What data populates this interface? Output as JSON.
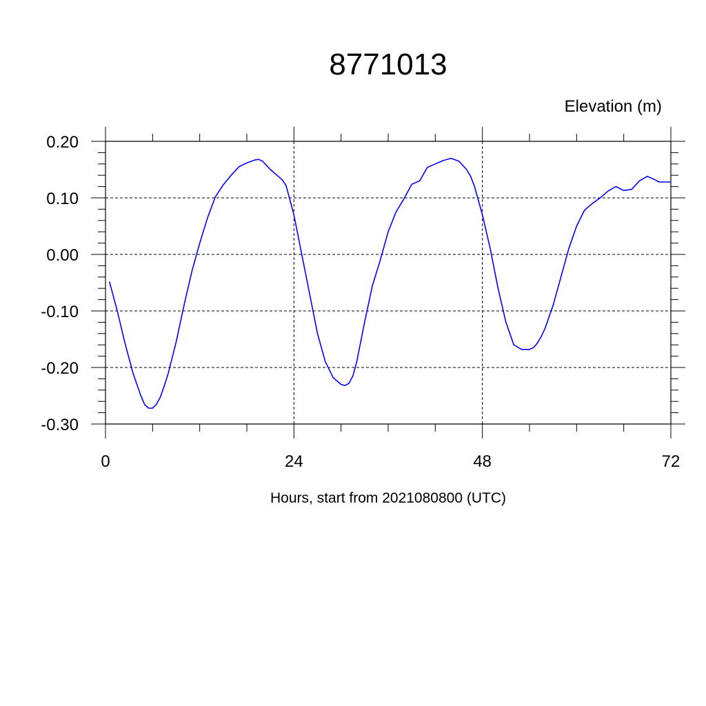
{
  "chart_data": {
    "type": "line",
    "title": "8771013",
    "ylabel": "Elevation (m)",
    "xlabel": "Hours, start from 2021080800 (UTC)",
    "xlim": [
      0,
      72
    ],
    "ylim": [
      -0.3,
      0.2
    ],
    "xticks": [
      0,
      24,
      48,
      72
    ],
    "xtick_labels": [
      "0",
      "24",
      "48",
      "72"
    ],
    "yticks": [
      0.2,
      0.1,
      0.0,
      -0.1,
      -0.2,
      -0.3
    ],
    "ytick_labels": [
      "0.20",
      "0.10",
      "0.00",
      "-0.10",
      "-0.20",
      "-0.30"
    ],
    "grid": true,
    "line_color": "#0000ff",
    "series": [
      {
        "x": [
          0.5,
          1.5,
          2.5,
          3.5,
          4.5,
          5.0,
          5.5,
          6.0,
          6.5,
          7.0,
          7.5,
          8.0,
          9.0,
          10.0,
          11.0,
          12.0,
          13.0,
          14.0,
          15.0,
          16.0,
          17.0,
          18.0,
          19.0,
          19.5,
          20.0,
          21.0,
          22.0,
          22.5,
          23.0,
          24.0,
          25.0,
          26.0,
          27.0,
          28.0,
          29.0,
          30.0,
          30.5,
          31.0,
          31.5,
          32.0,
          33.0,
          34.0,
          35.0,
          36.0,
          37.0,
          38.0,
          39.0,
          40.0,
          41.0,
          42.0,
          43.0,
          44.0,
          45.0,
          46.0,
          46.5,
          47.0,
          48.0,
          49.0,
          50.0,
          51.0,
          52.0,
          53.0,
          54.0,
          54.5,
          55.0,
          55.5,
          56.0,
          57.0,
          58.0,
          59.0,
          60.0,
          61.0,
          62.0,
          63.0,
          64.0,
          65.0,
          66.0,
          67.0,
          68.0,
          69.0,
          70.0,
          70.5,
          71.0,
          72.0
        ],
        "y": [
          -0.048,
          -0.1,
          -0.158,
          -0.21,
          -0.25,
          -0.266,
          -0.272,
          -0.272,
          -0.265,
          -0.252,
          -0.232,
          -0.21,
          -0.155,
          -0.09,
          -0.03,
          0.02,
          0.065,
          0.102,
          0.123,
          0.14,
          0.155,
          0.162,
          0.167,
          0.168,
          0.165,
          0.15,
          0.138,
          0.132,
          0.122,
          0.07,
          0.0,
          -0.07,
          -0.14,
          -0.19,
          -0.218,
          -0.23,
          -0.232,
          -0.228,
          -0.215,
          -0.19,
          -0.12,
          -0.055,
          -0.01,
          0.04,
          0.075,
          0.098,
          0.124,
          0.13,
          0.154,
          0.16,
          0.166,
          0.17,
          0.165,
          0.15,
          0.138,
          0.12,
          0.07,
          0.01,
          -0.06,
          -0.12,
          -0.16,
          -0.168,
          -0.168,
          -0.165,
          -0.157,
          -0.145,
          -0.13,
          -0.09,
          -0.04,
          0.01,
          0.05,
          0.078,
          0.09,
          0.1,
          0.112,
          0.12,
          0.113,
          0.115,
          0.13,
          0.138,
          0.132,
          0.128,
          0.128,
          0.128
        ]
      }
    ]
  }
}
